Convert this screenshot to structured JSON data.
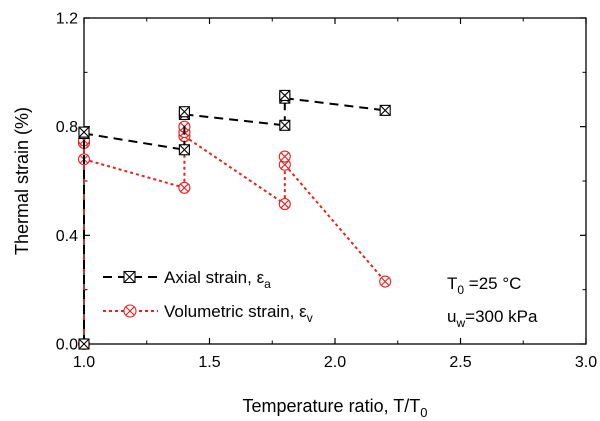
{
  "chart_data": {
    "type": "line",
    "xlabel": "Temperature ratio, T/T",
    "xlabel_sub": "0",
    "ylabel": "Thermal strain (%)",
    "xlim": [
      1.0,
      3.0
    ],
    "ylim": [
      0.0,
      1.2
    ],
    "xticks": [
      "1.0",
      "1.5",
      "2.0",
      "2.5",
      "3.0"
    ],
    "yticks": [
      "0.0",
      "0.4",
      "0.8",
      "1.2"
    ],
    "grid": false,
    "legend_position": "bottom-left",
    "series": [
      {
        "name": "Axial strain, ε",
        "name_sub": "a",
        "color": "#000000",
        "marker": "boxed-x",
        "line_style": "dashed",
        "segments": [
          [
            [
              1.0,
              0.0
            ],
            [
              1.0,
              0.775
            ]
          ],
          [
            [
              1.0,
              0.775
            ],
            [
              1.4,
              0.715
            ]
          ],
          [
            [
              1.4,
              0.715
            ],
            [
              1.4,
              0.855
            ]
          ],
          [
            [
              1.4,
              0.845
            ],
            [
              1.8,
              0.805
            ]
          ],
          [
            [
              1.8,
              0.805
            ],
            [
              1.8,
              0.915
            ]
          ],
          [
            [
              1.8,
              0.905
            ],
            [
              2.2,
              0.86
            ]
          ]
        ],
        "points": [
          [
            1.0,
            0.0
          ],
          [
            1.0,
            0.775
          ],
          [
            1.0,
            0.78
          ],
          [
            1.4,
            0.715
          ],
          [
            1.4,
            0.845
          ],
          [
            1.4,
            0.855
          ],
          [
            1.8,
            0.805
          ],
          [
            1.8,
            0.905
          ],
          [
            1.8,
            0.915
          ],
          [
            2.2,
            0.86
          ]
        ]
      },
      {
        "name": "Volumetric strain, ε",
        "name_sub": "v",
        "color": "#e8211f",
        "marker": "circled-x",
        "line_style": "dotted",
        "segments": [
          [
            [
              1.0,
              0.0
            ],
            [
              1.0,
              0.745
            ]
          ],
          [
            [
              1.0,
              0.68
            ],
            [
              1.4,
              0.575
            ]
          ],
          [
            [
              1.4,
              0.575
            ],
            [
              1.4,
              0.8
            ]
          ],
          [
            [
              1.4,
              0.765
            ],
            [
              1.8,
              0.515
            ]
          ],
          [
            [
              1.8,
              0.515
            ],
            [
              1.8,
              0.69
            ]
          ],
          [
            [
              1.8,
              0.66
            ],
            [
              2.2,
              0.23
            ]
          ]
        ],
        "points": [
          [
            1.0,
            0.0
          ],
          [
            1.0,
            0.68
          ],
          [
            1.0,
            0.74
          ],
          [
            1.0,
            0.75
          ],
          [
            1.4,
            0.575
          ],
          [
            1.4,
            0.765
          ],
          [
            1.4,
            0.78
          ],
          [
            1.4,
            0.8
          ],
          [
            1.8,
            0.515
          ],
          [
            1.8,
            0.66
          ],
          [
            1.8,
            0.69
          ],
          [
            2.2,
            0.23
          ]
        ]
      }
    ],
    "annotations": [
      {
        "text": "T",
        "sub": "0",
        "after": " =25 °C"
      },
      {
        "text": "u",
        "sub": "w",
        "after": "=300 kPa"
      }
    ]
  }
}
